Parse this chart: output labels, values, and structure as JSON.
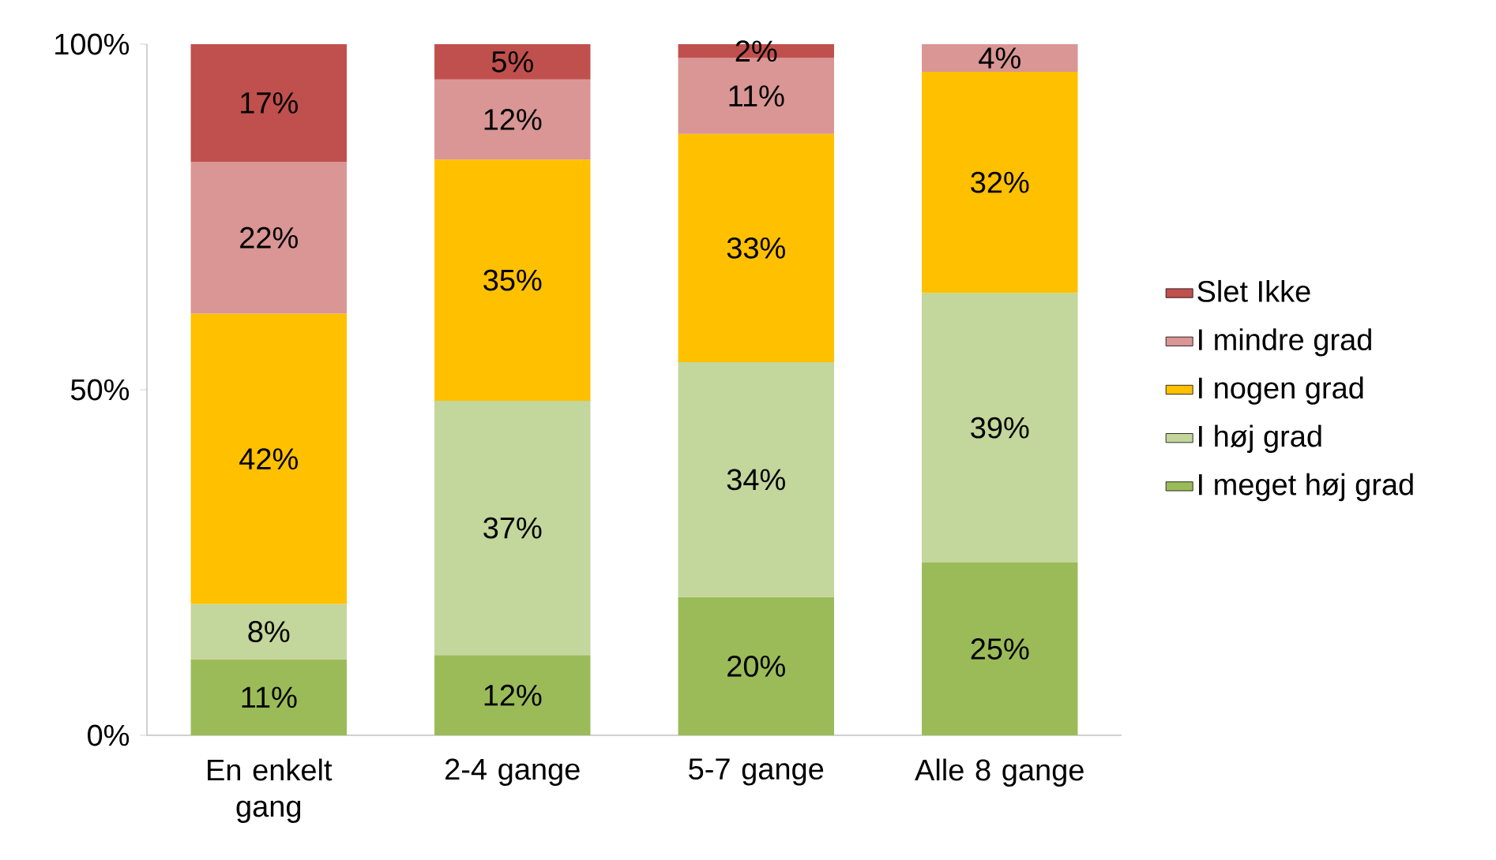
{
  "chart_data": {
    "type": "bar",
    "stacked": true,
    "categories": [
      "En enkelt gang",
      "2-4 gange",
      "5-7 gange",
      "Alle 8 gange"
    ],
    "series": [
      {
        "name": "I meget høj grad",
        "color": "#9bbb59",
        "values": [
          11,
          11.6,
          20,
          25
        ],
        "value_labels": [
          "11%",
          "12%",
          "20%",
          "25%"
        ]
      },
      {
        "name": "I høj grad",
        "color": "#c3d69b",
        "values": [
          8,
          36.8,
          34,
          39
        ],
        "value_labels": [
          "8%",
          "37%",
          "34%",
          "39%"
        ]
      },
      {
        "name": "I nogen grad",
        "color": "#ffc000",
        "values": [
          42,
          34.9,
          33,
          32
        ],
        "value_labels": [
          "42%",
          "35%",
          "33%",
          "32%"
        ]
      },
      {
        "name": "I mindre grad",
        "color": "#d99694",
        "values": [
          22,
          11.6,
          11,
          4
        ],
        "value_labels": [
          "22%",
          "12%",
          "11%",
          "4%"
        ]
      },
      {
        "name": "Slet Ikke",
        "color": "#c0504d",
        "values": [
          17,
          5.1,
          2,
          null
        ],
        "value_labels": [
          "17%",
          "5%",
          "2%",
          null
        ]
      }
    ],
    "ylim": [
      0,
      100
    ],
    "yticks": [
      {
        "value": 0,
        "label": "0%"
      },
      {
        "value": 50,
        "label": "50%"
      },
      {
        "value": 100,
        "label": "100%"
      }
    ],
    "grid": false,
    "legend": "right"
  }
}
